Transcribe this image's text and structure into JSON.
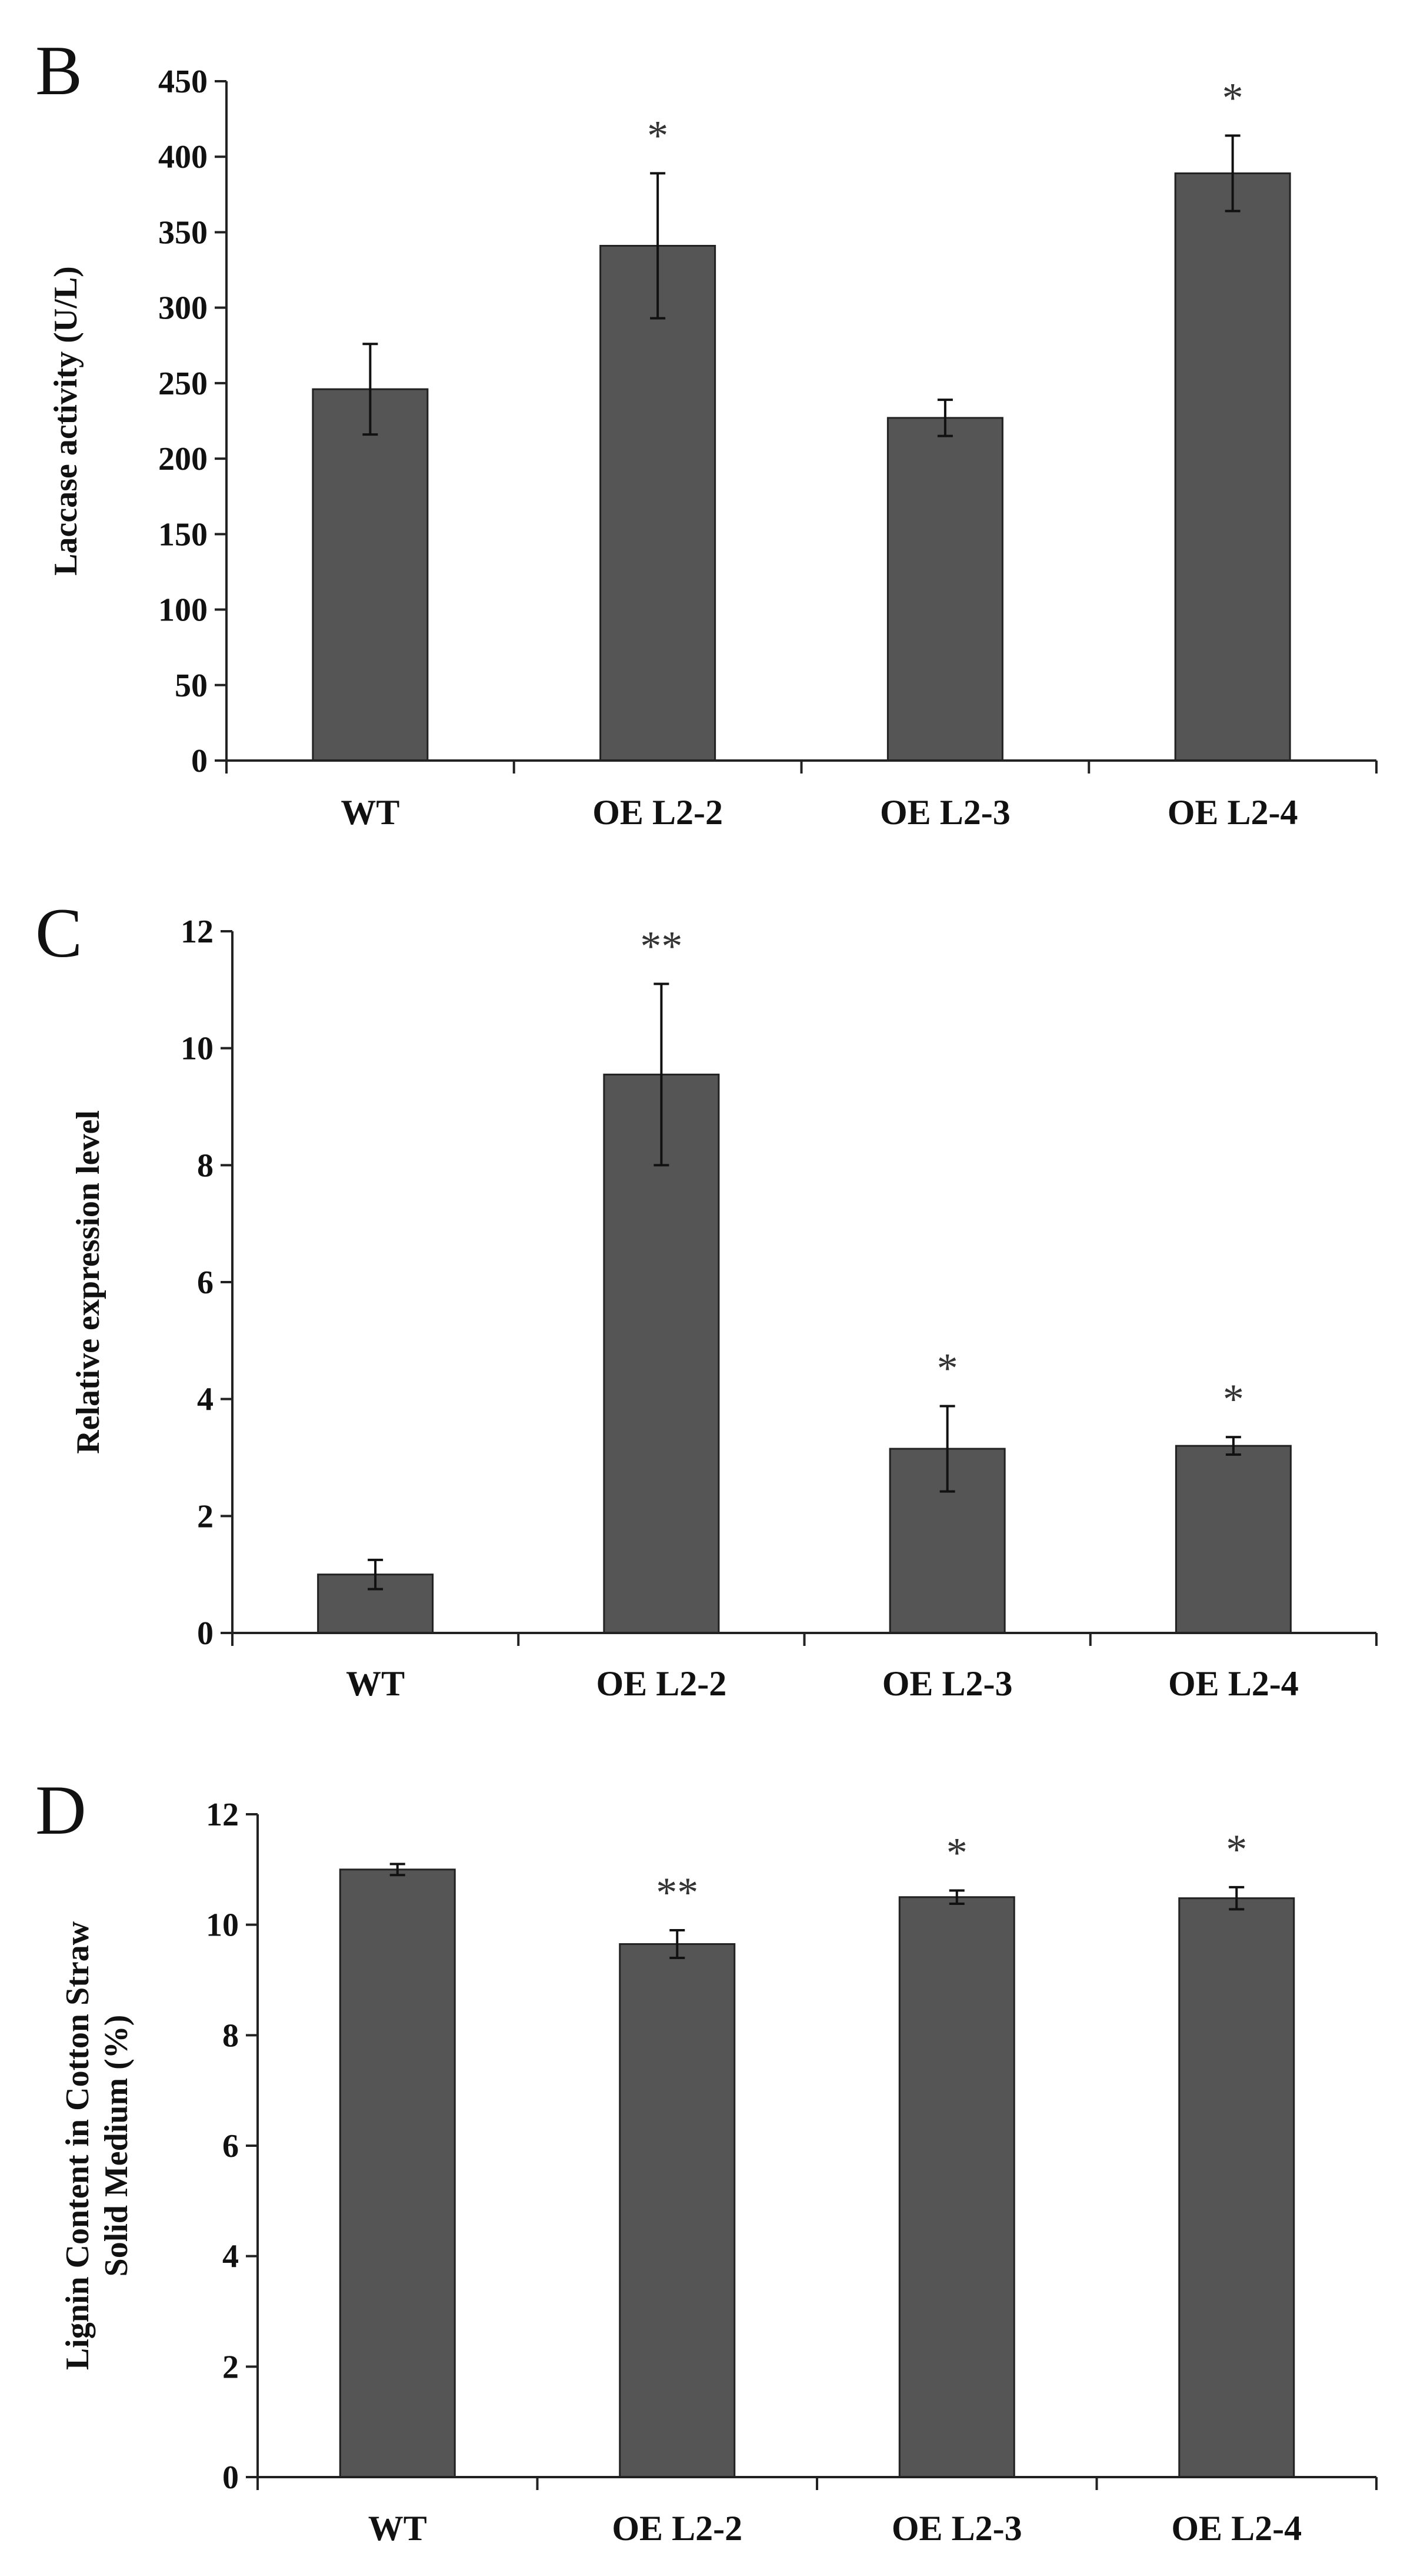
{
  "chart_data": [
    {
      "panel": "B",
      "type": "bar",
      "title": "",
      "xlabel": "",
      "ylabel": "Laccase activity (U/L)",
      "ylim": [
        0,
        450
      ],
      "yticks": [
        0,
        50,
        100,
        150,
        200,
        250,
        300,
        350,
        400,
        450
      ],
      "categories": [
        "WT",
        "OE L2-2",
        "OE L2-3",
        "OE L2-4"
      ],
      "values": [
        246,
        341,
        227,
        389
      ],
      "errors": [
        30,
        48,
        12,
        25
      ],
      "significance": [
        "",
        "*",
        "",
        "*"
      ]
    },
    {
      "panel": "C",
      "type": "bar",
      "title": "",
      "xlabel": "",
      "ylabel": "Relative expression level",
      "ylim": [
        0,
        12
      ],
      "yticks": [
        0,
        2,
        4,
        6,
        8,
        10,
        12
      ],
      "categories": [
        "WT",
        "OE L2-2",
        "OE L2-3",
        "OE L2-4"
      ],
      "values": [
        1.0,
        9.55,
        3.15,
        3.2
      ],
      "errors": [
        0.25,
        1.55,
        0.73,
        0.15
      ],
      "significance": [
        "",
        "**",
        "*",
        "*"
      ]
    },
    {
      "panel": "D",
      "type": "bar",
      "title": "",
      "xlabel": "",
      "ylabel": "Lignin Content in Cotton Straw",
      "ylabel2": "Solid Medium (%)",
      "ylim": [
        0,
        12
      ],
      "yticks": [
        0,
        2,
        4,
        6,
        8,
        10,
        12
      ],
      "categories": [
        "WT",
        "OE L2-2",
        "OE L2-3",
        "OE L2-4"
      ],
      "values": [
        11.0,
        9.65,
        10.5,
        10.48
      ],
      "errors": [
        0.1,
        0.25,
        0.12,
        0.2
      ],
      "significance": [
        "",
        "**",
        "*",
        "*"
      ]
    }
  ]
}
